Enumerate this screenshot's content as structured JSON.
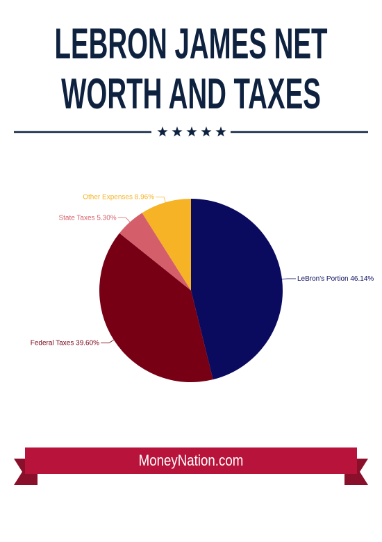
{
  "title": "LEBRON JAMES NET WORTH AND TAXES",
  "chart_data": {
    "type": "pie",
    "categories": [
      "LeBron's Portion",
      "Federal Taxes",
      "State Taxes",
      "Other Expenses"
    ],
    "values": [
      46.14,
      39.6,
      5.3,
      8.96
    ],
    "value_labels": [
      "46.14%",
      "39.60%",
      "5.30%",
      "8.96%"
    ],
    "colors": [
      "#0a0a5e",
      "#780014",
      "#d45f6a",
      "#f5b325"
    ]
  },
  "footer": "MoneyNation.com"
}
